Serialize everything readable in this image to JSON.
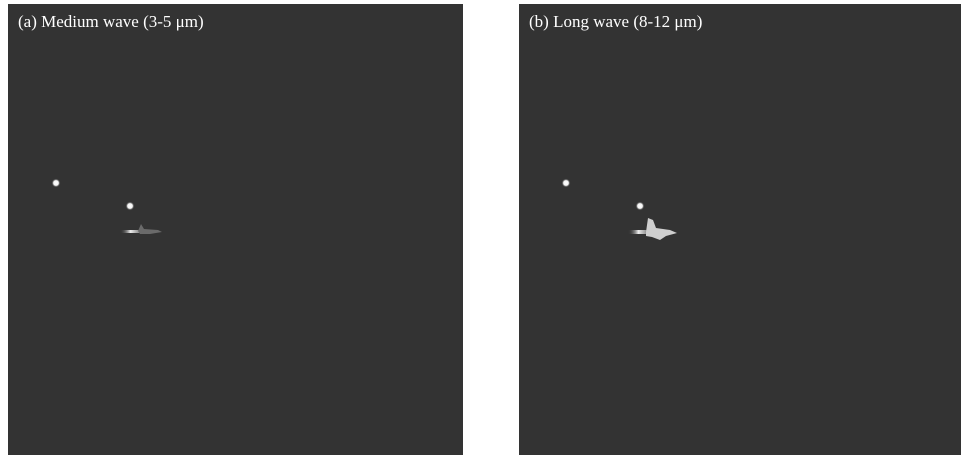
{
  "panels": [
    {
      "label": "(a) Medium wave (3-5 μm)"
    },
    {
      "label": "(b) Long wave (8-12 μm)"
    }
  ]
}
